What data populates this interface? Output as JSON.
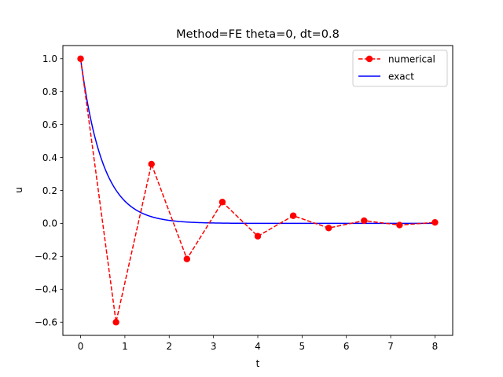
{
  "chart_data": {
    "type": "line",
    "title": "Method=FE theta=0, dt=0.8",
    "xlabel": "t",
    "ylabel": "u",
    "xlim": [
      -0.4,
      8.4
    ],
    "ylim": [
      -0.68,
      1.08
    ],
    "xticks": [
      0,
      1,
      2,
      3,
      4,
      5,
      6,
      7,
      8
    ],
    "yticks": [
      -0.6,
      -0.4,
      -0.2,
      0.0,
      0.2,
      0.4,
      0.6,
      0.8,
      1.0
    ],
    "xtick_labels": [
      "0",
      "1",
      "2",
      "3",
      "4",
      "5",
      "6",
      "7",
      "8"
    ],
    "ytick_labels": [
      "−0.6",
      "−0.4",
      "−0.2",
      "0.0",
      "0.2",
      "0.4",
      "0.6",
      "0.8",
      "1.0"
    ],
    "grid": false,
    "legend_position": "top-right",
    "series": [
      {
        "name": "numerical",
        "color": "#ff0000",
        "line_style": "dashed",
        "marker": "circle",
        "x": [
          0.0,
          0.8,
          1.6,
          2.4,
          3.2,
          4.0,
          4.8,
          5.6,
          6.4,
          7.2,
          8.0
        ],
        "y": [
          1.0,
          -0.6,
          0.36,
          -0.216,
          0.1296,
          -0.0778,
          0.0467,
          -0.028,
          0.0168,
          -0.0101,
          0.006
        ]
      },
      {
        "name": "exact",
        "color": "#0000ff",
        "line_style": "solid",
        "marker": "none",
        "function": "exp(-2t)",
        "x_range": [
          0,
          8
        ]
      }
    ]
  }
}
